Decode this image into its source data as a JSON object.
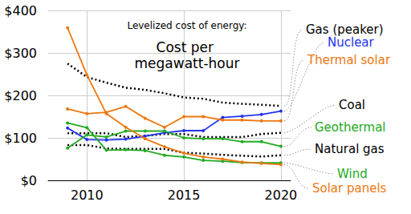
{
  "chart_data": {
    "type": "line",
    "subtitle": "Levelized cost of energy:",
    "title": "Cost per megawatt-hour",
    "x": [
      2009,
      2010,
      2011,
      2012,
      2013,
      2014,
      2015,
      2016,
      2017,
      2018,
      2019,
      2020
    ],
    "xlim": [
      2008,
      2020.5
    ],
    "xticks": [
      2010,
      2015,
      2020
    ],
    "ylim": [
      0,
      400
    ],
    "yticks": [
      {
        "value": 0,
        "label": "$0"
      },
      {
        "value": 100,
        "label": "$100"
      },
      {
        "value": 200,
        "label": "$200"
      },
      {
        "value": 300,
        "label": "$300"
      },
      {
        "value": 400,
        "label": "$400"
      }
    ],
    "grid": true,
    "series": [
      {
        "name": "Gas (peaker)",
        "color": "#000000",
        "line_style": "dotted",
        "marker": "none",
        "values": [
          275,
          243,
          230,
          218,
          213,
          205,
          195,
          192,
          183,
          180,
          178,
          175
        ]
      },
      {
        "name": "Nuclear",
        "color": "#2233ee",
        "line_style": "solid",
        "marker": "circle",
        "values": [
          123,
          96,
          95,
          97,
          104,
          112,
          117,
          117,
          148,
          151,
          155,
          163
        ]
      },
      {
        "name": "Thermal solar",
        "color": "#ee7711",
        "line_style": "solid",
        "marker": "circle",
        "values": [
          168,
          157,
          160,
          174,
          146,
          125,
          150,
          150,
          142,
          142,
          140,
          140
        ]
      },
      {
        "name": "Coal",
        "color": "#000000",
        "line_style": "dotted",
        "marker": "none",
        "values": [
          111,
          111,
          111,
          102,
          105,
          109,
          109,
          102,
          102,
          102,
          109,
          112
        ]
      },
      {
        "name": "Geothermal",
        "color": "#22aa22",
        "line_style": "solid",
        "marker": "circle",
        "values": [
          76,
          107,
          102,
          116,
          116,
          116,
          100,
          98,
          98,
          91,
          91,
          80
        ]
      },
      {
        "name": "Natural gas",
        "color": "#000000",
        "line_style": "dotted",
        "marker": "none",
        "values": [
          83,
          83,
          75,
          74,
          74,
          74,
          65,
          63,
          60,
          58,
          56,
          59
        ]
      },
      {
        "name": "Wind",
        "color": "#22aa22",
        "line_style": "solid",
        "marker": "circle",
        "values": [
          135,
          124,
          71,
          72,
          70,
          59,
          55,
          47,
          45,
          42,
          41,
          41
        ]
      },
      {
        "name": "Solar panels",
        "color": "#ee7711",
        "line_style": "solid",
        "marker": "circle",
        "values": [
          359,
          248,
          157,
          125,
          98,
          79,
          64,
          55,
          50,
          43,
          40,
          37
        ]
      }
    ]
  }
}
